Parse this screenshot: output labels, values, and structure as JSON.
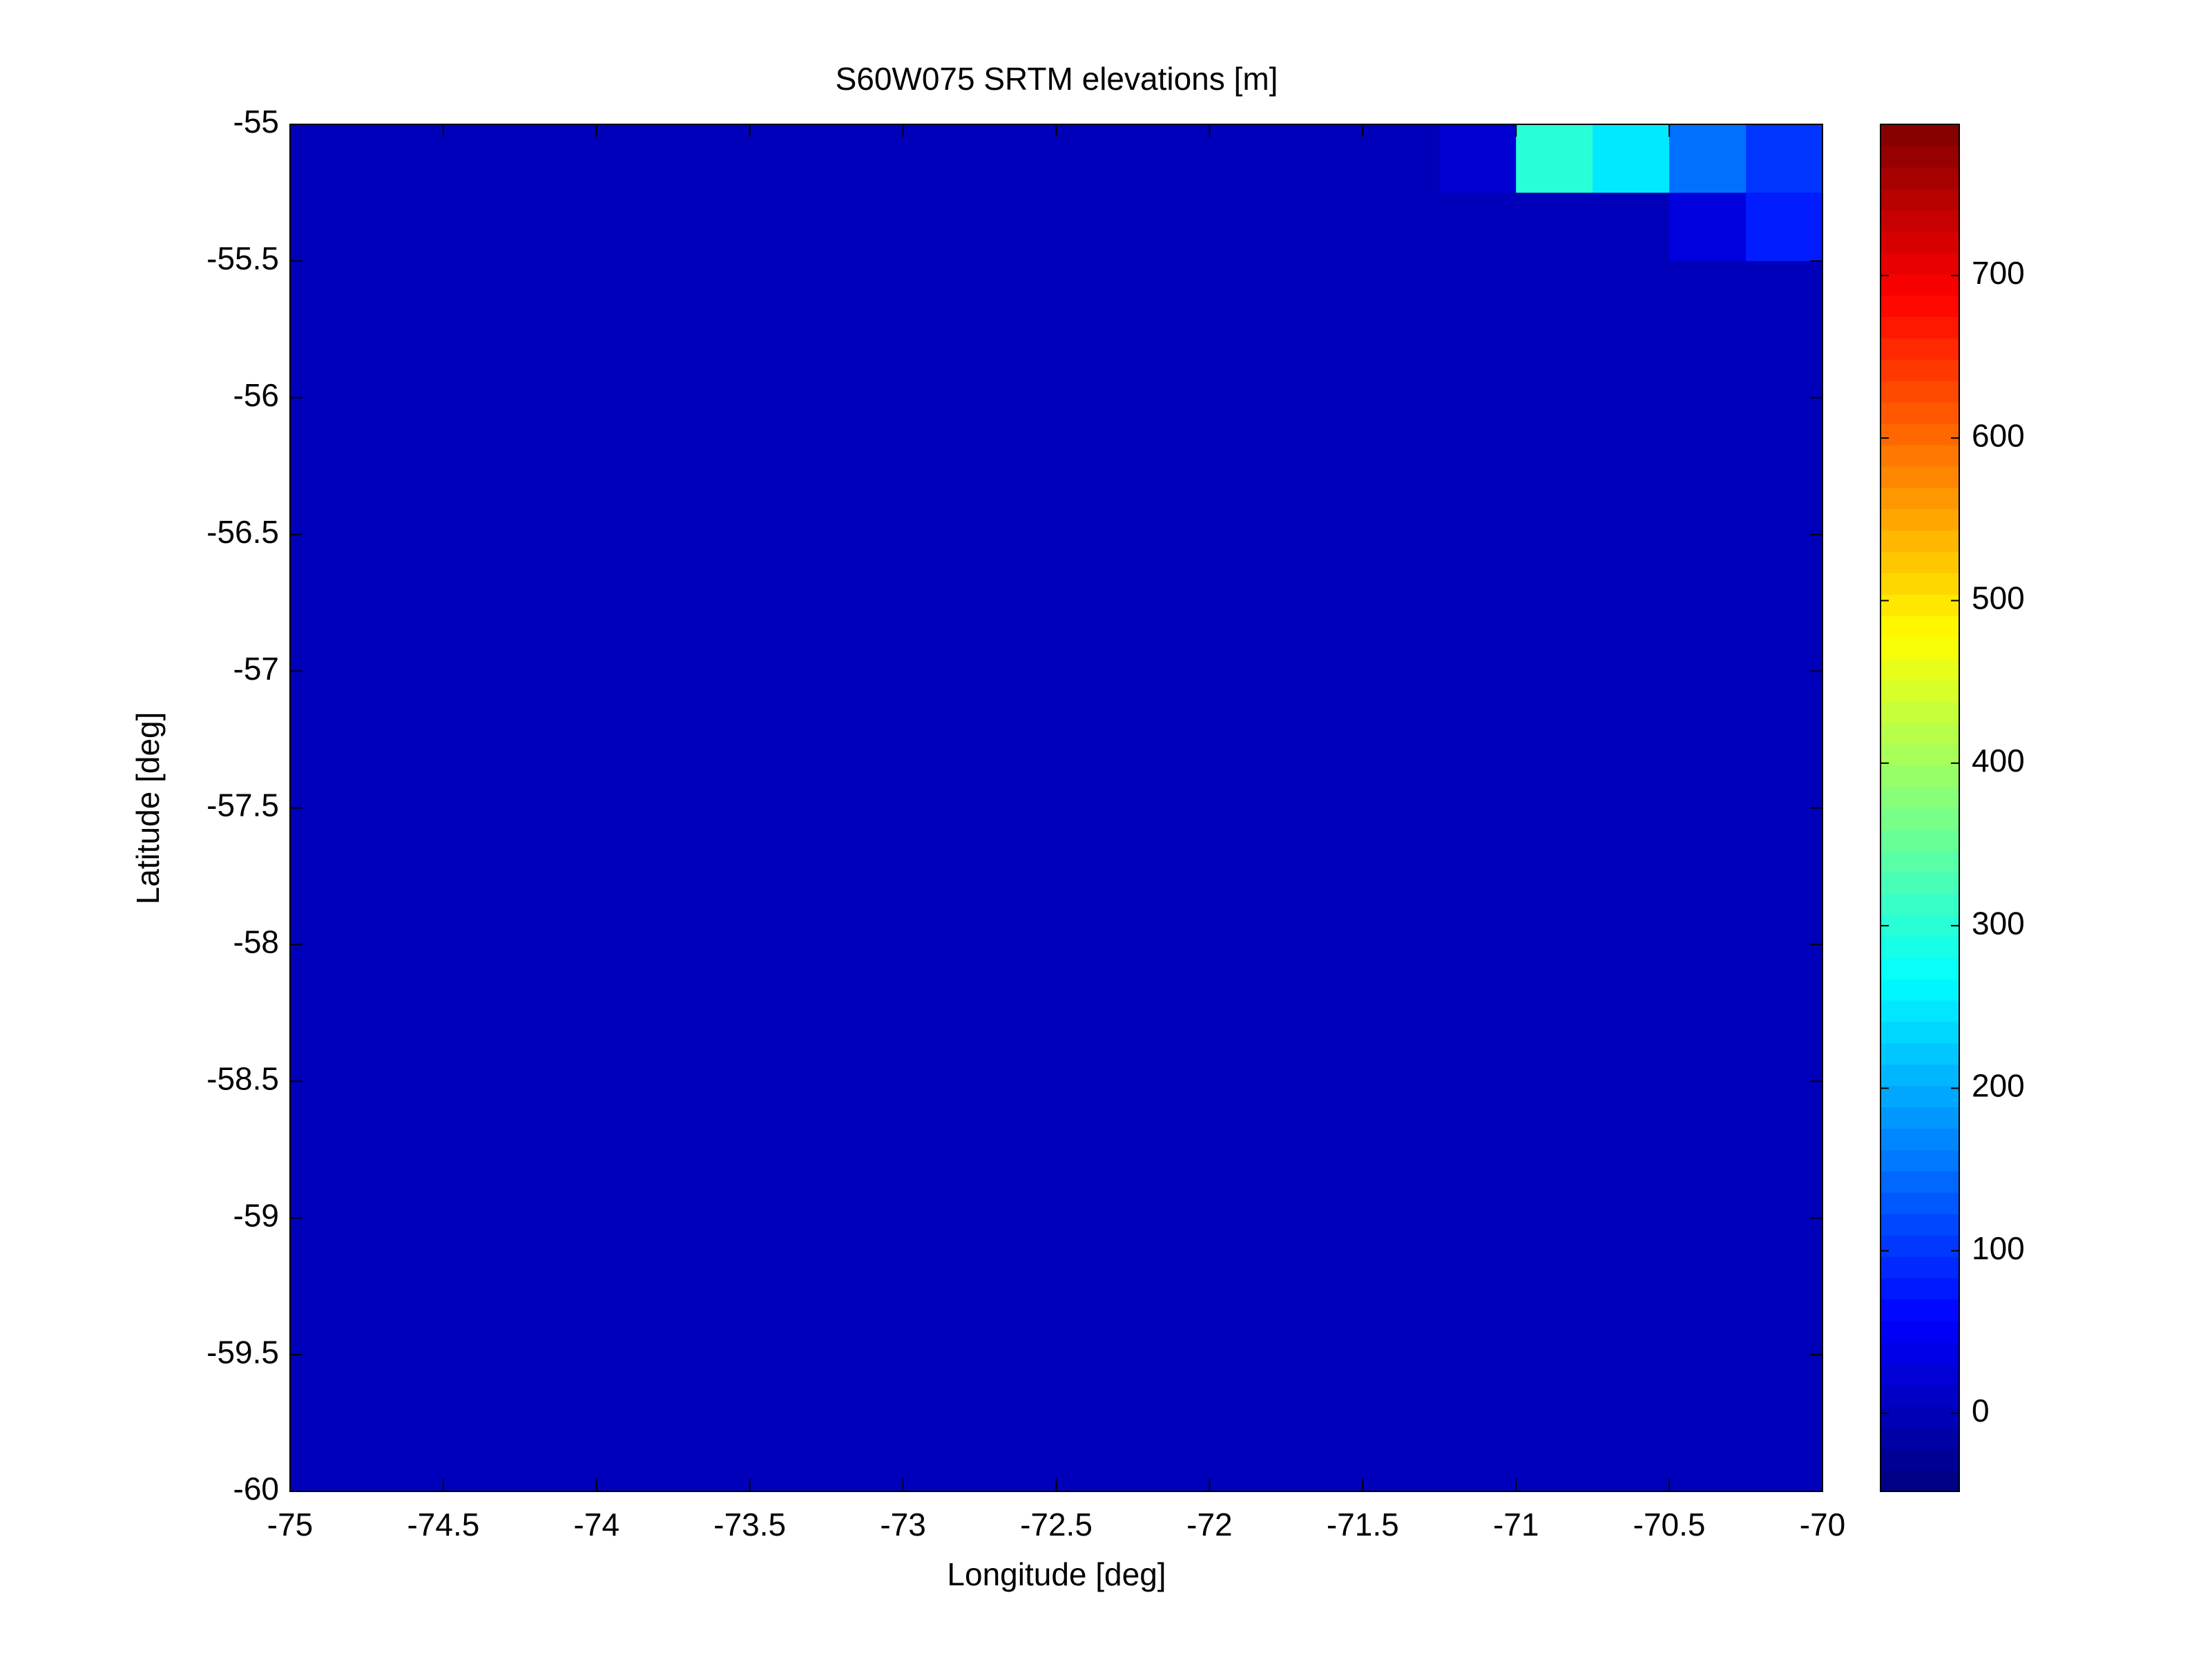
{
  "chart_data": {
    "type": "heatmap",
    "title": "S60W075 SRTM elevations [m]",
    "x_label": "Longitude [deg]",
    "y_label": "Latitude [deg]",
    "xlim": [
      -75,
      -70
    ],
    "xticks": [
      -75,
      -74.5,
      -74,
      -73.5,
      -73,
      -72.5,
      -72,
      -71.5,
      -71,
      -70.5,
      -70
    ],
    "ylim": [
      -60,
      -55
    ],
    "yticks": [
      -55,
      -55.5,
      -56,
      -56.5,
      -57,
      -57.5,
      -58,
      -58.5,
      -59,
      -59.5,
      -60
    ],
    "colormap": "jet",
    "clim": [
      -48,
      793
    ],
    "cticks": [
      0,
      100,
      200,
      300,
      400,
      500,
      600,
      700
    ],
    "values": [
      [
        0,
        0,
        0,
        0,
        0,
        0,
        0,
        0,
        0,
        0,
        0,
        0,
        0,
        0,
        0,
        20,
        300,
        250,
        150,
        100
      ],
      [
        0,
        0,
        0,
        0,
        0,
        0,
        0,
        0,
        0,
        0,
        0,
        0,
        0,
        0,
        0,
        0,
        0,
        0,
        30,
        80
      ],
      [
        0,
        0,
        0,
        0,
        0,
        0,
        0,
        0,
        0,
        0,
        0,
        0,
        0,
        0,
        0,
        0,
        0,
        0,
        0,
        0
      ],
      [
        0,
        0,
        0,
        0,
        0,
        0,
        0,
        0,
        0,
        0,
        0,
        0,
        0,
        0,
        0,
        0,
        0,
        0,
        0,
        0
      ],
      [
        0,
        0,
        0,
        0,
        0,
        0,
        0,
        0,
        0,
        0,
        0,
        0,
        0,
        0,
        0,
        0,
        0,
        0,
        0,
        0
      ],
      [
        0,
        0,
        0,
        0,
        0,
        0,
        0,
        0,
        0,
        0,
        0,
        0,
        0,
        0,
        0,
        0,
        0,
        0,
        0,
        0
      ],
      [
        0,
        0,
        0,
        0,
        0,
        0,
        0,
        0,
        0,
        0,
        0,
        0,
        0,
        0,
        0,
        0,
        0,
        0,
        0,
        0
      ],
      [
        0,
        0,
        0,
        0,
        0,
        0,
        0,
        0,
        0,
        0,
        0,
        0,
        0,
        0,
        0,
        0,
        0,
        0,
        0,
        0
      ],
      [
        0,
        0,
        0,
        0,
        0,
        0,
        0,
        0,
        0,
        0,
        0,
        0,
        0,
        0,
        0,
        0,
        0,
        0,
        0,
        0
      ],
      [
        0,
        0,
        0,
        0,
        0,
        0,
        0,
        0,
        0,
        0,
        0,
        0,
        0,
        0,
        0,
        0,
        0,
        0,
        0,
        0
      ],
      [
        0,
        0,
        0,
        0,
        0,
        0,
        0,
        0,
        0,
        0,
        0,
        0,
        0,
        0,
        0,
        0,
        0,
        0,
        0,
        0
      ],
      [
        0,
        0,
        0,
        0,
        0,
        0,
        0,
        0,
        0,
        0,
        0,
        0,
        0,
        0,
        0,
        0,
        0,
        0,
        0,
        0
      ],
      [
        0,
        0,
        0,
        0,
        0,
        0,
        0,
        0,
        0,
        0,
        0,
        0,
        0,
        0,
        0,
        0,
        0,
        0,
        0,
        0
      ],
      [
        0,
        0,
        0,
        0,
        0,
        0,
        0,
        0,
        0,
        0,
        0,
        0,
        0,
        0,
        0,
        0,
        0,
        0,
        0,
        0
      ],
      [
        0,
        0,
        0,
        0,
        0,
        0,
        0,
        0,
        0,
        0,
        0,
        0,
        0,
        0,
        0,
        0,
        0,
        0,
        0,
        0
      ],
      [
        0,
        0,
        0,
        0,
        0,
        0,
        0,
        0,
        0,
        0,
        0,
        0,
        0,
        0,
        0,
        0,
        0,
        0,
        0,
        0
      ],
      [
        0,
        0,
        0,
        0,
        0,
        0,
        0,
        0,
        0,
        0,
        0,
        0,
        0,
        0,
        0,
        0,
        0,
        0,
        0,
        0
      ],
      [
        0,
        0,
        0,
        0,
        0,
        0,
        0,
        0,
        0,
        0,
        0,
        0,
        0,
        0,
        0,
        0,
        0,
        0,
        0,
        0
      ],
      [
        0,
        0,
        0,
        0,
        0,
        0,
        0,
        0,
        0,
        0,
        0,
        0,
        0,
        0,
        0,
        0,
        0,
        0,
        0,
        0
      ],
      [
        0,
        0,
        0,
        0,
        0,
        0,
        0,
        0,
        0,
        0,
        0,
        0,
        0,
        0,
        0,
        0,
        0,
        0,
        0,
        0
      ]
    ]
  }
}
